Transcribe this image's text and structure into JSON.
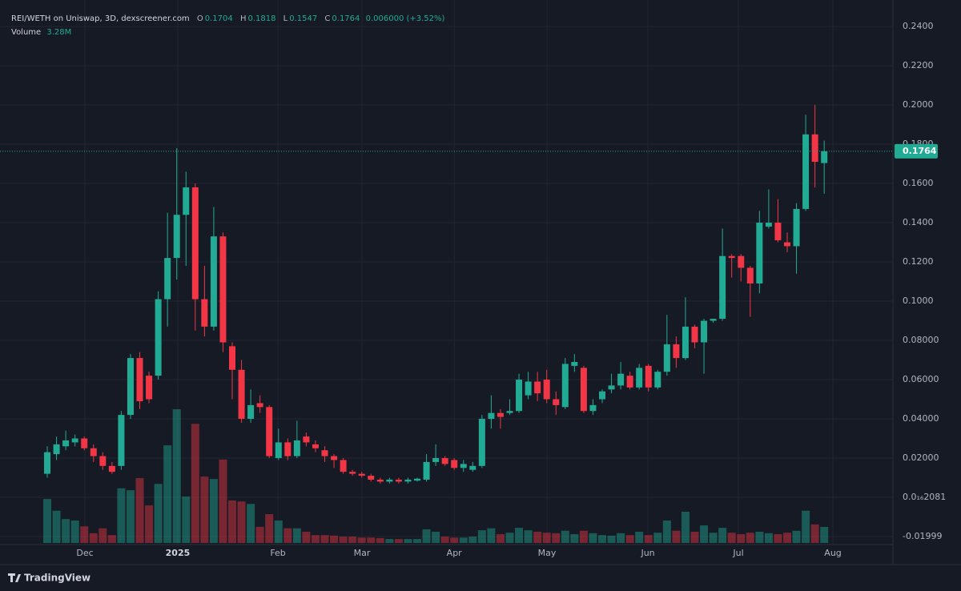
{
  "chart_data": {
    "type": "candlestick",
    "title": "REI/WETH on Uniswap, 3D, dexscreener.com",
    "ohlc_letters": [
      "O",
      "H",
      "L",
      "C"
    ],
    "change_label": "0.006000 (+3.52%)",
    "volume_title": "Volume",
    "last_volume_label": "3.28M",
    "brand": "TradingView",
    "up_color": "#22ab94",
    "down_color": "#f23645",
    "grid": true,
    "open": [
      0.012,
      0.022,
      0.026,
      0.028,
      0.03,
      0.025,
      0.021,
      0.016,
      0.016,
      0.042,
      0.071,
      0.062,
      0.062,
      0.101,
      0.122,
      0.144,
      0.158,
      0.101,
      0.087,
      0.133,
      0.077,
      0.065,
      0.04,
      0.048,
      0.046,
      0.02,
      0.028,
      0.021,
      0.031,
      0.027,
      0.024,
      0.021,
      0.019,
      0.013,
      0.012,
      0.011,
      0.009,
      0.008,
      0.009,
      0.008,
      0.0085,
      0.009,
      0.018,
      0.02,
      0.019,
      0.015,
      0.014,
      0.016,
      0.04,
      0.043,
      0.043,
      0.044,
      0.052,
      0.059,
      0.06,
      0.05,
      0.046,
      0.067,
      0.066,
      0.044,
      0.05,
      0.055,
      0.057,
      0.062,
      0.056,
      0.067,
      0.056,
      0.064,
      0.078,
      0.071,
      0.087,
      0.079,
      0.09,
      0.091,
      0.123,
      0.123,
      0.117,
      0.109,
      0.138,
      0.14,
      0.13,
      0.128,
      0.147,
      0.185,
      0.1704
    ],
    "high": [
      0.026,
      0.031,
      0.034,
      0.032,
      0.031,
      0.027,
      0.023,
      0.018,
      0.044,
      0.073,
      0.074,
      0.064,
      0.105,
      0.145,
      0.178,
      0.166,
      0.16,
      0.118,
      0.148,
      0.135,
      0.079,
      0.07,
      0.055,
      0.052,
      0.047,
      0.035,
      0.03,
      0.039,
      0.033,
      0.029,
      0.026,
      0.022,
      0.02,
      0.014,
      0.013,
      0.012,
      0.01,
      0.01,
      0.01,
      0.01,
      0.01,
      0.022,
      0.027,
      0.021,
      0.02,
      0.019,
      0.018,
      0.042,
      0.052,
      0.045,
      0.05,
      0.063,
      0.064,
      0.064,
      0.065,
      0.054,
      0.071,
      0.073,
      0.067,
      0.05,
      0.055,
      0.063,
      0.069,
      0.064,
      0.068,
      0.068,
      0.065,
      0.093,
      0.082,
      0.102,
      0.088,
      0.091,
      0.091,
      0.137,
      0.124,
      0.124,
      0.118,
      0.146,
      0.157,
      0.152,
      0.135,
      0.15,
      0.195,
      0.2,
      0.1818
    ],
    "low": [
      0.01,
      0.019,
      0.024,
      0.026,
      0.024,
      0.018,
      0.014,
      0.012,
      0.014,
      0.04,
      0.045,
      0.048,
      0.06,
      0.087,
      0.111,
      0.118,
      0.085,
      0.082,
      0.085,
      0.074,
      0.05,
      0.038,
      0.038,
      0.043,
      0.02,
      0.019,
      0.019,
      0.02,
      0.026,
      0.023,
      0.018,
      0.015,
      0.012,
      0.011,
      0.01,
      0.008,
      0.007,
      0.007,
      0.007,
      0.007,
      0.008,
      0.008,
      0.016,
      0.016,
      0.014,
      0.013,
      0.013,
      0.015,
      0.035,
      0.035,
      0.042,
      0.043,
      0.05,
      0.049,
      0.048,
      0.042,
      0.045,
      0.064,
      0.043,
      0.042,
      0.048,
      0.053,
      0.055,
      0.055,
      0.055,
      0.054,
      0.055,
      0.062,
      0.066,
      0.07,
      0.076,
      0.063,
      0.089,
      0.09,
      0.112,
      0.11,
      0.092,
      0.104,
      0.137,
      0.13,
      0.125,
      0.114,
      0.146,
      0.158,
      0.1547
    ],
    "close": [
      0.023,
      0.027,
      0.029,
      0.03,
      0.025,
      0.021,
      0.016,
      0.013,
      0.042,
      0.071,
      0.049,
      0.05,
      0.101,
      0.122,
      0.144,
      0.158,
      0.101,
      0.087,
      0.133,
      0.079,
      0.065,
      0.04,
      0.047,
      0.046,
      0.021,
      0.028,
      0.021,
      0.029,
      0.028,
      0.025,
      0.021,
      0.019,
      0.013,
      0.012,
      0.011,
      0.009,
      0.008,
      0.009,
      0.008,
      0.009,
      0.0095,
      0.018,
      0.02,
      0.017,
      0.015,
      0.017,
      0.016,
      0.04,
      0.043,
      0.041,
      0.044,
      0.06,
      0.059,
      0.053,
      0.05,
      0.047,
      0.068,
      0.069,
      0.044,
      0.047,
      0.054,
      0.057,
      0.063,
      0.056,
      0.066,
      0.056,
      0.064,
      0.078,
      0.071,
      0.087,
      0.079,
      0.09,
      0.091,
      0.123,
      0.122,
      0.117,
      0.109,
      0.14,
      0.14,
      0.131,
      0.128,
      0.147,
      0.185,
      0.171,
      0.1764
    ],
    "volume": [
      9.0,
      6.6,
      4.9,
      4.6,
      3.4,
      2.0,
      3.0,
      1.6,
      11.2,
      10.8,
      13.3,
      7.7,
      12.1,
      20,
      27.4,
      9.5,
      24.4,
      13.6,
      13.1,
      17.1,
      8.7,
      8.5,
      8.0,
      3.3,
      5.9,
      4.6,
      3.0,
      3.0,
      2.3,
      1.6,
      1.6,
      1.5,
      1.3,
      1.3,
      1.1,
      1.1,
      1.0,
      0.8,
      0.8,
      0.8,
      0.8,
      2.8,
      2.3,
      1.3,
      1.1,
      1.1,
      1.3,
      2.6,
      3.0,
      1.8,
      2.1,
      3.1,
      2.6,
      2.3,
      2.1,
      2.0,
      2.5,
      1.8,
      2.5,
      2.0,
      1.6,
      1.5,
      2.0,
      1.6,
      2.3,
      1.6,
      2.1,
      4.6,
      2.5,
      6.4,
      2.3,
      3.6,
      2.1,
      3.1,
      2.1,
      1.8,
      2.1,
      2.3,
      2.0,
      1.8,
      2.1,
      2.5,
      6.6,
      3.8,
      3.28
    ],
    "xlim": [
      -5.11,
      91.43
    ],
    "xticks": [
      {
        "value": 4.07,
        "label": "Dec"
      },
      {
        "value": 14.11,
        "label": "2025"
      },
      {
        "value": 24.94,
        "label": "Feb"
      },
      {
        "value": 34.03,
        "label": "Mar"
      },
      {
        "value": 44.0,
        "label": "Apr"
      },
      {
        "value": 54.03,
        "label": "May"
      },
      {
        "value": 64.94,
        "label": "Jun"
      },
      {
        "value": 74.72,
        "label": "Jul"
      },
      {
        "value": 84.94,
        "label": "Aug"
      }
    ],
    "ylim": [
      -0.02408,
      0.2535
    ],
    "yticks": [
      {
        "value": 0.24,
        "label": "0.2400"
      },
      {
        "value": 0.22,
        "label": "0.2200"
      },
      {
        "value": 0.2,
        "label": "0.2000"
      },
      {
        "value": 0.18,
        "label": "0.1800"
      },
      {
        "value": 0.16,
        "label": "0.1600"
      },
      {
        "value": 0.14,
        "label": "0.1400"
      },
      {
        "value": 0.12,
        "label": "0.1200"
      },
      {
        "value": 0.1,
        "label": "0.1000"
      },
      {
        "value": 0.08,
        "label": "0.08000"
      },
      {
        "value": 0.06,
        "label": "0.06000"
      },
      {
        "value": 0.04,
        "label": "0.04000"
      },
      {
        "value": 0.02,
        "label": "0.02000"
      },
      {
        "value": 2.081e-17,
        "label": "0.0₁₆2081"
      },
      {
        "value": -0.01999,
        "label": "-0.01999"
      }
    ]
  }
}
